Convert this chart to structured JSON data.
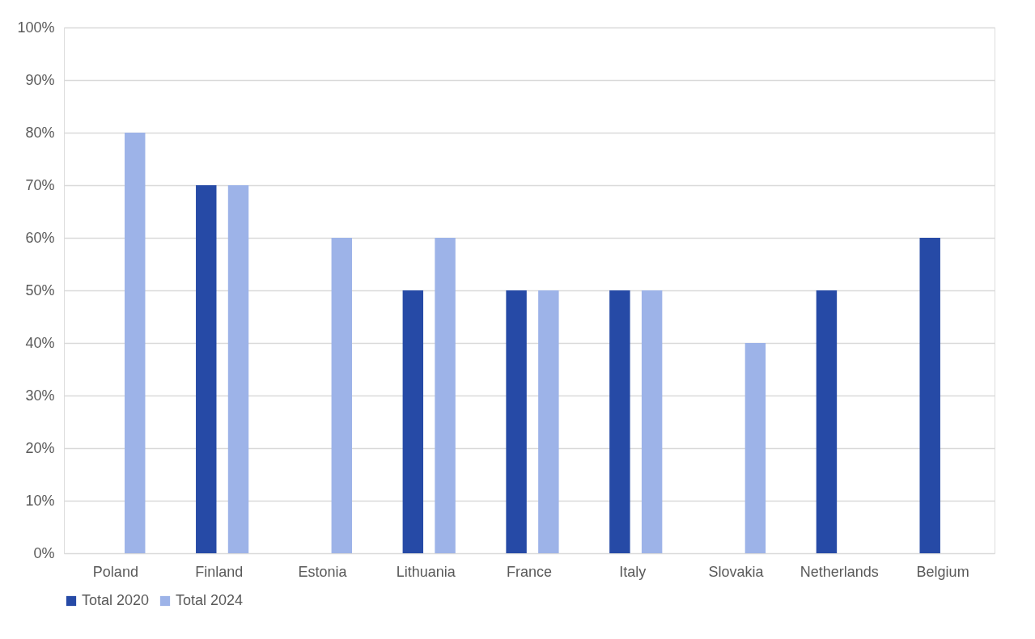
{
  "chart_data": {
    "type": "bar",
    "categories": [
      "Poland",
      "Finland",
      "Estonia",
      "Lithuania",
      "France",
      "Italy",
      "Slovakia",
      "Netherlands",
      "Belgium"
    ],
    "series": [
      {
        "name": "Total 2020",
        "color": "#264aa6",
        "values": [
          null,
          70,
          null,
          50,
          50,
          50,
          null,
          50,
          60
        ]
      },
      {
        "name": "Total 2024",
        "color": "#9db3e8",
        "values": [
          80,
          70,
          60,
          60,
          50,
          50,
          40,
          null,
          null
        ]
      }
    ],
    "ylim": [
      0,
      100
    ],
    "yticks": [
      {
        "value": 0,
        "label": "0%"
      },
      {
        "value": 10,
        "label": "10%"
      },
      {
        "value": 20,
        "label": "20%"
      },
      {
        "value": 30,
        "label": "30%"
      },
      {
        "value": 40,
        "label": "40%"
      },
      {
        "value": 50,
        "label": "50%"
      },
      {
        "value": 60,
        "label": "60%"
      },
      {
        "value": 70,
        "label": "70%"
      },
      {
        "value": 80,
        "label": "80%"
      },
      {
        "value": 90,
        "label": "90%"
      },
      {
        "value": 100,
        "label": "100%"
      }
    ],
    "grid": "y",
    "legend": "bottom"
  }
}
